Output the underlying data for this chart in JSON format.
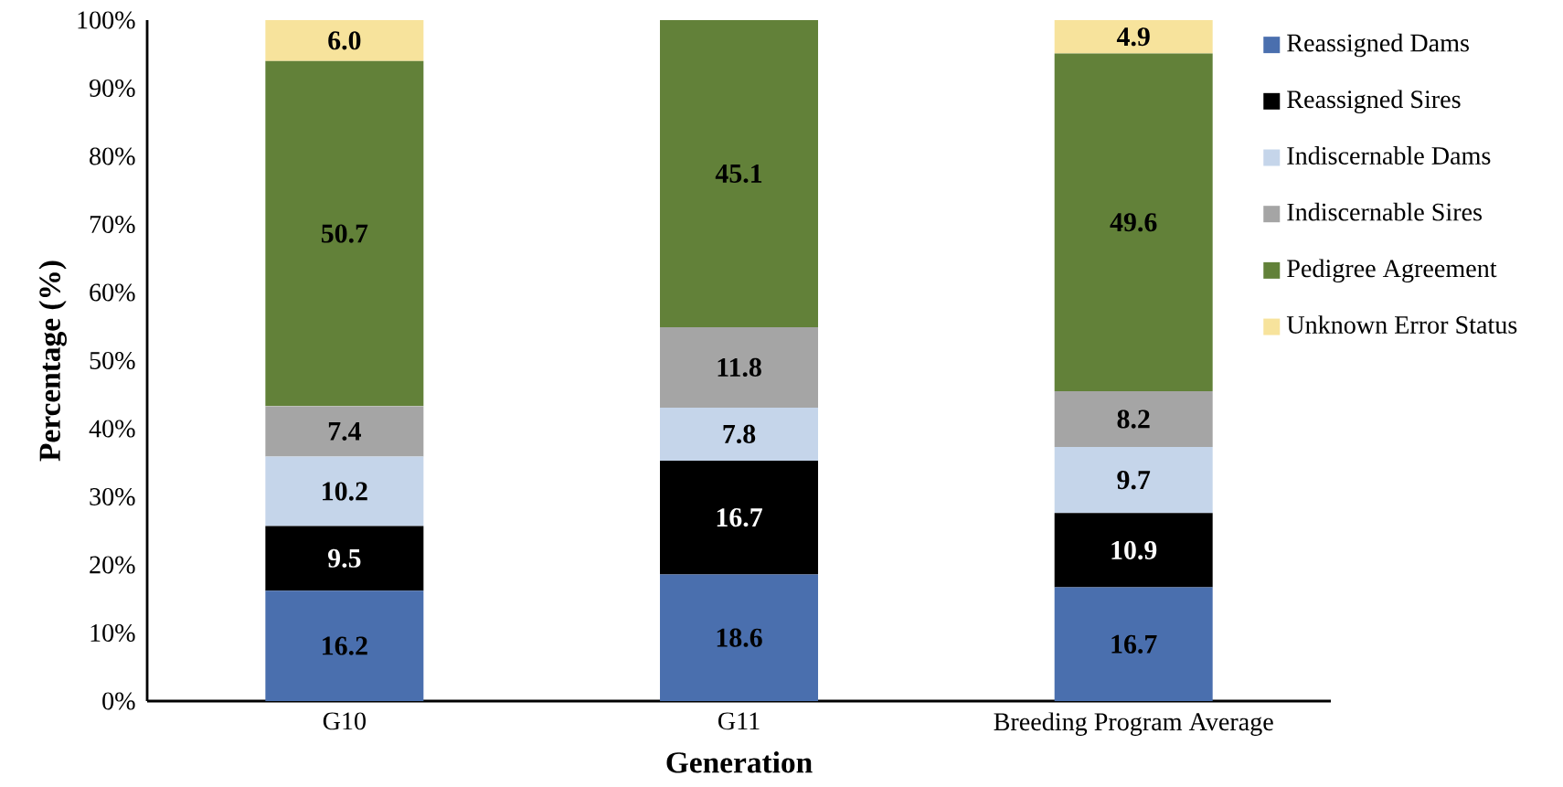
{
  "chart_data": {
    "type": "bar",
    "stacked": true,
    "xlabel": "Generation",
    "ylabel": "Percentage (%)",
    "categories": [
      "G10",
      "G11",
      "Breeding Program Average"
    ],
    "series": [
      {
        "name": "Reassigned Dams",
        "color": "#4a6fae",
        "values": [
          16.2,
          18.6,
          16.7
        ],
        "value_labels": [
          "16.2",
          "18.6",
          "16.7"
        ]
      },
      {
        "name": "Reassigned Sires",
        "color": "#000000",
        "values": [
          9.5,
          16.7,
          10.9
        ],
        "value_labels": [
          "9.5",
          "16.7",
          "10.9"
        ]
      },
      {
        "name": "Indiscernable Dams",
        "color": "#c5d5ea",
        "values": [
          10.2,
          7.8,
          9.7
        ],
        "value_labels": [
          "10.2",
          "7.8",
          "9.7"
        ]
      },
      {
        "name": "Indiscernable Sires",
        "color": "#a5a5a5",
        "values": [
          7.4,
          11.8,
          8.2
        ],
        "value_labels": [
          "7.4",
          "11.8",
          "8.2"
        ]
      },
      {
        "name": "Pedigree Agreement",
        "color": "#628139",
        "values": [
          50.7,
          45.1,
          49.6
        ],
        "value_labels": [
          "50.7",
          "45.1",
          "49.6"
        ]
      },
      {
        "name": "Unknown Error Status",
        "color": "#f7e39c",
        "values": [
          6.0,
          null,
          4.9
        ],
        "value_labels": [
          "6.0",
          null,
          "4.9"
        ]
      }
    ],
    "ylim": [
      0,
      100
    ],
    "yticks": [
      {
        "value": 0,
        "label": "0%"
      },
      {
        "value": 10,
        "label": "10%"
      },
      {
        "value": 20,
        "label": "20%"
      },
      {
        "value": 30,
        "label": "30%"
      },
      {
        "value": 40,
        "label": "40%"
      },
      {
        "value": 50,
        "label": "50%"
      },
      {
        "value": 60,
        "label": "60%"
      },
      {
        "value": 70,
        "label": "70%"
      },
      {
        "value": 80,
        "label": "80%"
      },
      {
        "value": 90,
        "label": "90%"
      },
      {
        "value": 100,
        "label": "100%"
      }
    ],
    "grid": false,
    "legend": "top right"
  }
}
